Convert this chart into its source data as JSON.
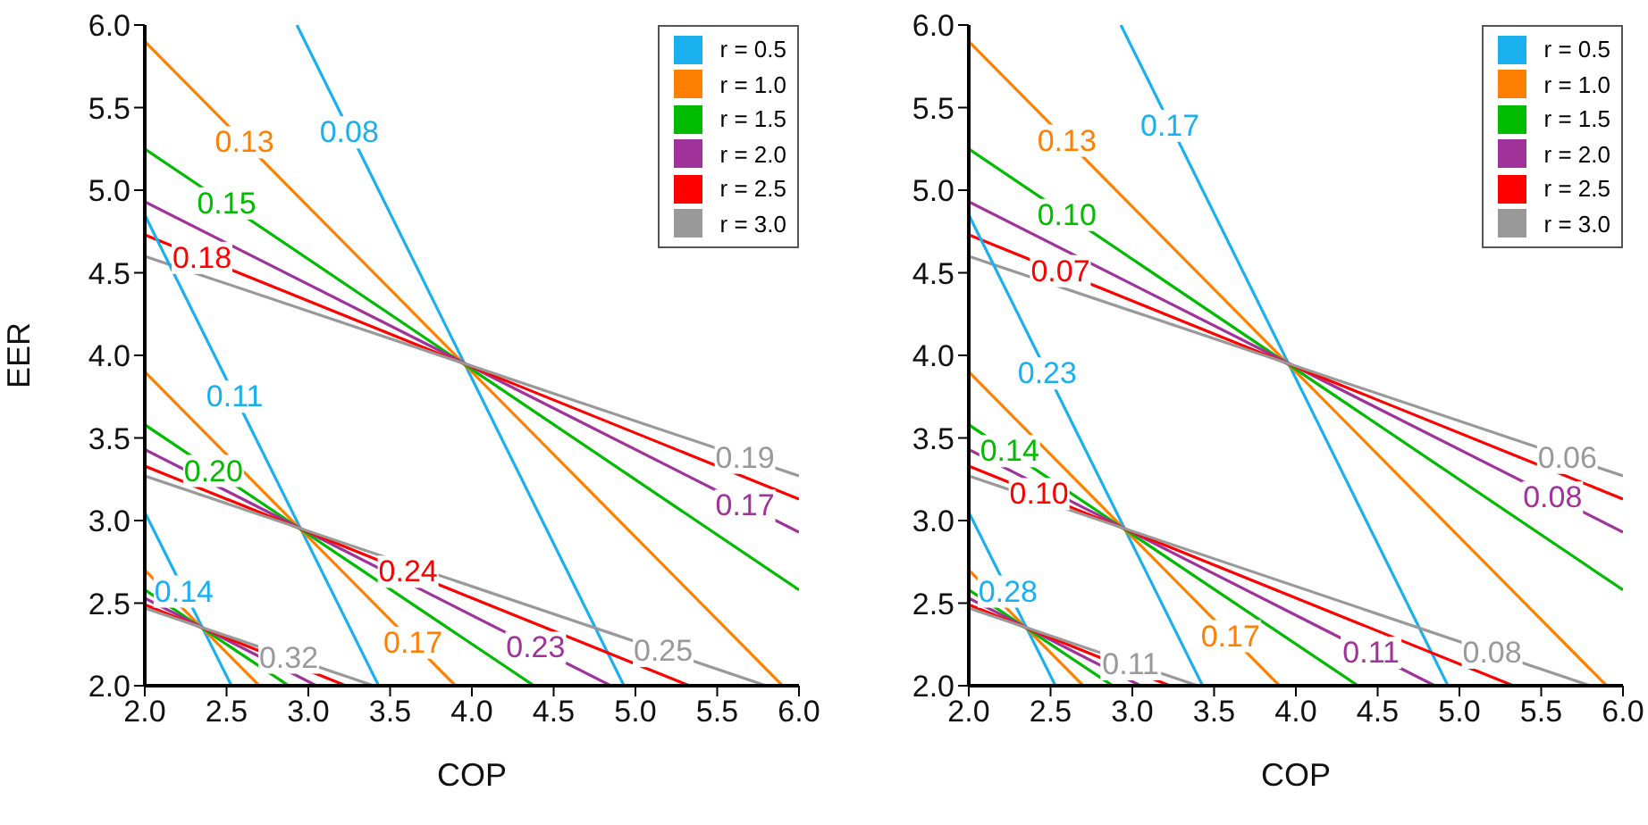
{
  "chart_data": [
    {
      "type": "line",
      "xlabel": "COP",
      "ylabel": "EER",
      "xlim": [
        2,
        6
      ],
      "ylim": [
        2,
        6
      ],
      "xticks": [
        {
          "value": 2,
          "label": "2.0"
        },
        2.5,
        {
          "value": 3,
          "label": "3.0"
        },
        3.5,
        {
          "value": 4,
          "label": "4.0"
        },
        4.5,
        {
          "value": 5,
          "label": "5.0"
        },
        5.5,
        {
          "value": 6,
          "label": "6.0"
        }
      ],
      "yticks": [
        {
          "value": 2,
          "label": "2.0"
        },
        2.5,
        {
          "value": 3,
          "label": "3.0"
        },
        3.5,
        {
          "value": 4,
          "label": "4.0"
        },
        4.5,
        {
          "value": 5,
          "label": "5.0"
        },
        5.5,
        {
          "value": 6,
          "label": "6.0"
        }
      ],
      "grid": false,
      "legend": "top right",
      "series": [
        {
          "name": "r = 0.5",
          "color": "#1ab0f0",
          "x": [
            2.93,
            4.93
          ],
          "values": [
            6,
            2
          ]
        },
        {
          "name": "r = 1.0",
          "color": "#ff8000",
          "x": [
            2,
            5.9
          ],
          "values": [
            5.9,
            2
          ]
        },
        {
          "name": "r = 1.5",
          "color": "#00bb00",
          "x": [
            2,
            6
          ],
          "values": [
            5.25,
            2.58
          ]
        },
        {
          "name": "r = 2.0",
          "color": "#a03399",
          "x": [
            2,
            6
          ],
          "values": [
            4.93,
            2.93
          ]
        },
        {
          "name": "r = 2.5",
          "color": "#ff0000",
          "x": [
            2,
            6
          ],
          "values": [
            4.73,
            3.13
          ]
        },
        {
          "name": "r = 3.0",
          "color": "#999999",
          "x": [
            2,
            6
          ],
          "values": [
            4.6,
            3.27
          ]
        },
        {
          "color": "#1ab0f0",
          "x": [
            2,
            3.43
          ],
          "values": [
            4.85,
            2
          ]
        },
        {
          "color": "#ff8000",
          "x": [
            2,
            3.9
          ],
          "values": [
            3.9,
            2
          ]
        },
        {
          "color": "#00bb00",
          "x": [
            2,
            4.38
          ],
          "values": [
            3.58,
            2
          ]
        },
        {
          "color": "#a03399",
          "x": [
            2,
            4.85
          ],
          "values": [
            3.43,
            2
          ]
        },
        {
          "color": "#ff0000",
          "x": [
            2,
            5.33
          ],
          "values": [
            3.33,
            2
          ]
        },
        {
          "color": "#999999",
          "x": [
            2,
            5.8
          ],
          "values": [
            3.27,
            2
          ]
        },
        {
          "color": "#1ab0f0",
          "x": [
            2,
            2.53
          ],
          "values": [
            3.05,
            2
          ]
        },
        {
          "color": "#ff8000",
          "x": [
            2,
            2.7
          ],
          "values": [
            2.7,
            2
          ]
        },
        {
          "color": "#00bb00",
          "x": [
            2,
            2.88
          ],
          "values": [
            2.58,
            2
          ]
        },
        {
          "color": "#a03399",
          "x": [
            2,
            3.05
          ],
          "values": [
            2.53,
            2
          ]
        },
        {
          "color": "#ff0000",
          "x": [
            2,
            3.23
          ],
          "values": [
            2.49,
            2
          ]
        },
        {
          "color": "#999999",
          "x": [
            2,
            3.4
          ],
          "values": [
            2.47,
            2
          ]
        }
      ],
      "annotations": [
        {
          "text": "0.08",
          "x": 3.25,
          "y": 5.35
        },
        {
          "text": "0.13",
          "x": 2.61,
          "y": 5.29
        },
        {
          "text": "0.15",
          "x": 2.5,
          "y": 4.92
        },
        {
          "text": "0.17",
          "x": 5.67,
          "y": 3.09
        },
        {
          "text": "0.18",
          "x": 2.35,
          "y": 4.59
        },
        {
          "text": "0.19",
          "x": 5.67,
          "y": 3.38
        },
        {
          "text": "0.11",
          "x": 2.55,
          "y": 3.75
        },
        {
          "text": "0.17",
          "x": 3.64,
          "y": 2.26
        },
        {
          "text": "0.20",
          "x": 2.42,
          "y": 3.3
        },
        {
          "text": "0.23",
          "x": 4.39,
          "y": 2.23
        },
        {
          "text": "0.24",
          "x": 3.61,
          "y": 2.69
        },
        {
          "text": "0.25",
          "x": 5.17,
          "y": 2.21
        },
        {
          "text": "0.14",
          "x": 2.24,
          "y": 2.57
        },
        {
          "text": "0.32",
          "x": 2.88,
          "y": 2.17
        }
      ]
    },
    {
      "type": "line",
      "xlabel": "COP",
      "xlim": [
        2,
        6
      ],
      "ylim": [
        2,
        6
      ],
      "xticks": [
        {
          "value": 2,
          "label": "2.0"
        },
        2.5,
        {
          "value": 3,
          "label": "3.0"
        },
        3.5,
        {
          "value": 4,
          "label": "4.0"
        },
        4.5,
        {
          "value": 5,
          "label": "5.0"
        },
        5.5,
        {
          "value": 6,
          "label": "6.0"
        }
      ],
      "yticks": [
        {
          "value": 2,
          "label": "2.0"
        },
        2.5,
        {
          "value": 3,
          "label": "3.0"
        },
        3.5,
        {
          "value": 4,
          "label": "4.0"
        },
        4.5,
        {
          "value": 5,
          "label": "5.0"
        },
        5.5,
        {
          "value": 6,
          "label": "6.0"
        }
      ],
      "grid": false,
      "legend": "top right",
      "series": [
        {
          "name": "r = 0.5",
          "color": "#1ab0f0",
          "x": [
            2.93,
            4.93
          ],
          "values": [
            6,
            2
          ]
        },
        {
          "name": "r = 1.0",
          "color": "#ff8000",
          "x": [
            2,
            5.9
          ],
          "values": [
            5.9,
            2
          ]
        },
        {
          "name": "r = 1.5",
          "color": "#00bb00",
          "x": [
            2,
            6
          ],
          "values": [
            5.25,
            2.58
          ]
        },
        {
          "name": "r = 2.0",
          "color": "#a03399",
          "x": [
            2,
            6
          ],
          "values": [
            4.93,
            2.93
          ]
        },
        {
          "name": "r = 2.5",
          "color": "#ff0000",
          "x": [
            2,
            6
          ],
          "values": [
            4.73,
            3.13
          ]
        },
        {
          "name": "r = 3.0",
          "color": "#999999",
          "x": [
            2,
            6
          ],
          "values": [
            4.6,
            3.27
          ]
        },
        {
          "color": "#1ab0f0",
          "x": [
            2,
            3.43
          ],
          "values": [
            4.85,
            2
          ]
        },
        {
          "color": "#ff8000",
          "x": [
            2,
            3.9
          ],
          "values": [
            3.9,
            2
          ]
        },
        {
          "color": "#00bb00",
          "x": [
            2,
            4.38
          ],
          "values": [
            3.58,
            2
          ]
        },
        {
          "color": "#a03399",
          "x": [
            2,
            4.85
          ],
          "values": [
            3.43,
            2
          ]
        },
        {
          "color": "#ff0000",
          "x": [
            2,
            5.33
          ],
          "values": [
            3.33,
            2
          ]
        },
        {
          "color": "#999999",
          "x": [
            2,
            5.8
          ],
          "values": [
            3.27,
            2
          ]
        },
        {
          "color": "#1ab0f0",
          "x": [
            2,
            2.53
          ],
          "values": [
            3.05,
            2
          ]
        },
        {
          "color": "#ff8000",
          "x": [
            2,
            2.7
          ],
          "values": [
            2.7,
            2
          ]
        },
        {
          "color": "#00bb00",
          "x": [
            2,
            2.88
          ],
          "values": [
            2.58,
            2
          ]
        },
        {
          "color": "#a03399",
          "x": [
            2,
            3.05
          ],
          "values": [
            2.53,
            2
          ]
        },
        {
          "color": "#ff0000",
          "x": [
            2,
            3.23
          ],
          "values": [
            2.49,
            2
          ]
        },
        {
          "color": "#999999",
          "x": [
            2,
            3.4
          ],
          "values": [
            2.47,
            2
          ]
        }
      ],
      "annotations": [
        {
          "text": "0.17",
          "x": 3.23,
          "y": 5.39
        },
        {
          "text": "0.13",
          "x": 2.6,
          "y": 5.3
        },
        {
          "text": "0.10",
          "x": 2.6,
          "y": 4.85
        },
        {
          "text": "0.08",
          "x": 5.57,
          "y": 3.14
        },
        {
          "text": "0.07",
          "x": 2.56,
          "y": 4.51
        },
        {
          "text": "0.06",
          "x": 5.66,
          "y": 3.38
        },
        {
          "text": "0.23",
          "x": 2.48,
          "y": 3.89
        },
        {
          "text": "0.17",
          "x": 3.6,
          "y": 2.3
        },
        {
          "text": "0.14",
          "x": 2.25,
          "y": 3.42
        },
        {
          "text": "0.11",
          "x": 4.46,
          "y": 2.2
        },
        {
          "text": "0.10",
          "x": 2.43,
          "y": 3.16
        },
        {
          "text": "0.08",
          "x": 5.2,
          "y": 2.2
        },
        {
          "text": "0.28",
          "x": 2.24,
          "y": 2.57
        },
        {
          "text": "0.11",
          "x": 2.99,
          "y": 2.13
        }
      ]
    }
  ]
}
